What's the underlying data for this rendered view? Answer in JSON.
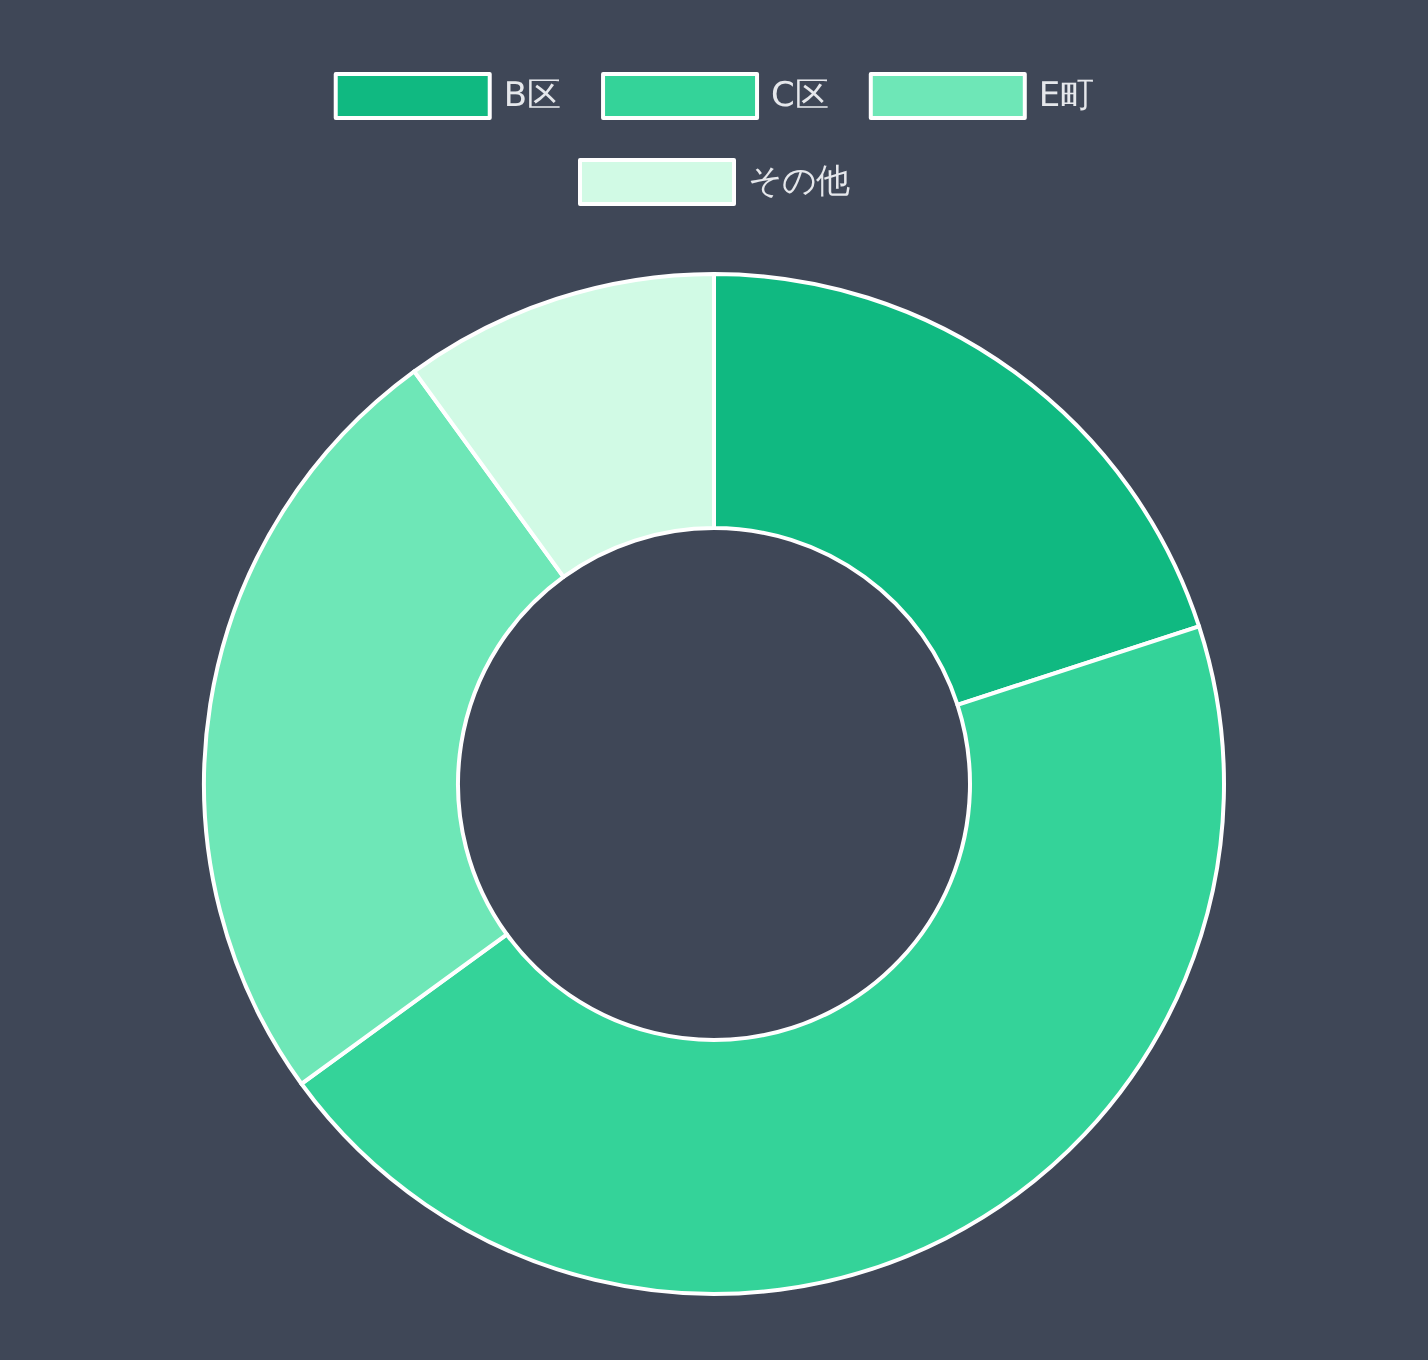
{
  "chart_data": {
    "type": "donut",
    "categories": [
      "B区",
      "C区",
      "E町",
      "その他"
    ],
    "values": [
      20,
      45,
      25,
      10
    ],
    "colors": [
      "#10b981",
      "#34d399",
      "#6ee7b7",
      "#d1fae5"
    ],
    "legend": "top"
  }
}
